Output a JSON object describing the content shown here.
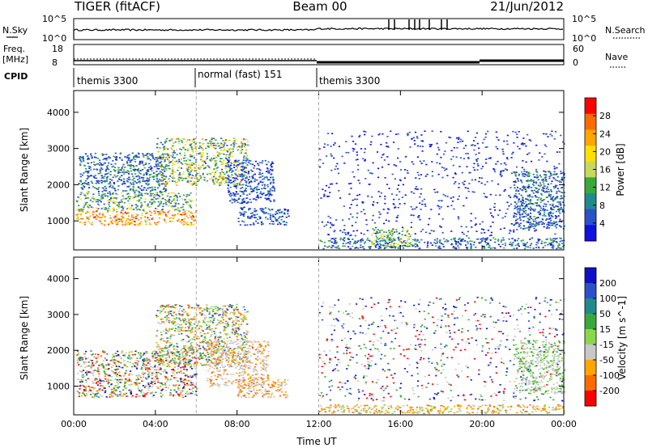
{
  "header": {
    "title": "TIGER (fitACF)",
    "beam": "Beam 00",
    "date": "21/Jun/2012"
  },
  "top_panels": {
    "nsky_label": "N.Sky",
    "nsky_ticks": [
      "10^5",
      "10^0"
    ],
    "nsearch_label": "N.Search",
    "nsearch_ticks": [
      "10^5",
      "10^0"
    ],
    "freq_label_1": "Freq.",
    "freq_label_2": "[MHz]",
    "freq_ticks": [
      "18",
      "8"
    ],
    "nave_label": "Nave",
    "nave_ticks": [
      "60",
      "0"
    ],
    "cpid_label": "CPID",
    "cpid_segments": [
      "themis 3300",
      "normal (fast) 151",
      "themis 3300"
    ]
  },
  "chart_data": [
    {
      "type": "heatmap",
      "panel": "power",
      "ylabel": "Slant Range [km]",
      "ylim": [
        200,
        4600
      ],
      "yticks": [
        "1000",
        "2000",
        "3000",
        "4000"
      ],
      "xlim": [
        "00:00",
        "24:00"
      ],
      "colorbar": {
        "label": "Power [dB]",
        "ticks": [
          "28",
          "24",
          "20",
          "16",
          "12",
          "8",
          "4"
        ],
        "colors": [
          "#ff0000",
          "#ff6a00",
          "#ffa500",
          "#ffe000",
          "#c8d85a",
          "#3aa83a",
          "#1e8c8c",
          "#2a52c8",
          "#1010e0"
        ]
      }
    },
    {
      "type": "heatmap",
      "panel": "velocity",
      "ylabel": "Slant Range [km]",
      "ylim": [
        200,
        4600
      ],
      "yticks": [
        "1000",
        "2000",
        "3000",
        "4000"
      ],
      "xlabel": "Time UT",
      "xticks": [
        "00:00",
        "04:00",
        "08:00",
        "12:00",
        "16:00",
        "20:00",
        "00:00"
      ],
      "colorbar": {
        "label": "Velocity [m s^-1]",
        "ticks": [
          "200",
          "100",
          "50",
          "15",
          "-15",
          "-50",
          "-100",
          "-200"
        ],
        "colors": [
          "#1010c8",
          "#2a52c8",
          "#1e8c8c",
          "#3aa83a",
          "#8ad84a",
          "#c8c8c8",
          "#ffa500",
          "#ff6a00",
          "#ff0000"
        ]
      }
    }
  ]
}
